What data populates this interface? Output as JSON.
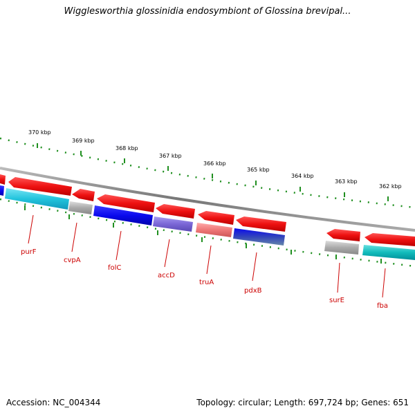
{
  "title": "Wigglesworthia glossinidia endosymbiont of Glossina brevipal...",
  "footer": {
    "accession": "Accession: NC_004344",
    "topology": "Topology: circular; Length: 697,724 bp; Genes: 651"
  },
  "colors": {
    "backbone": "#808080",
    "forward_gene": "#ee1111",
    "tick": "#1f8f1f",
    "label": "#cc0000",
    "gray_gene": "#aaaaaa",
    "cyan_gene": "#22c4dd",
    "blue_gene": "#0a0aee",
    "purple_gene": "#7a66d6",
    "pink_gene": "#ee7777",
    "teal_gene": "#11bbbb"
  },
  "scale": {
    "unit": "kbp",
    "labels": [
      "370 kbp",
      "369 kbp",
      "368 kbp",
      "367 kbp",
      "366 kbp",
      "365 kbp",
      "364 kbp",
      "363 kbp",
      "362 kbp"
    ]
  },
  "genes": [
    {
      "name": "purF",
      "strand": "reverse",
      "color": "cyan"
    },
    {
      "name": "cvpA",
      "strand": "reverse",
      "color": "gray"
    },
    {
      "name": "folC",
      "strand": "reverse",
      "color": "blue"
    },
    {
      "name": "accD",
      "strand": "reverse",
      "color": "purple"
    },
    {
      "name": "truA",
      "strand": "reverse",
      "color": "pink"
    },
    {
      "name": "pdxB",
      "strand": "reverse",
      "color": "blue"
    },
    {
      "name": "surE",
      "strand": "reverse",
      "color": "gray"
    },
    {
      "name": "fba",
      "strand": "reverse",
      "color": "teal"
    }
  ]
}
